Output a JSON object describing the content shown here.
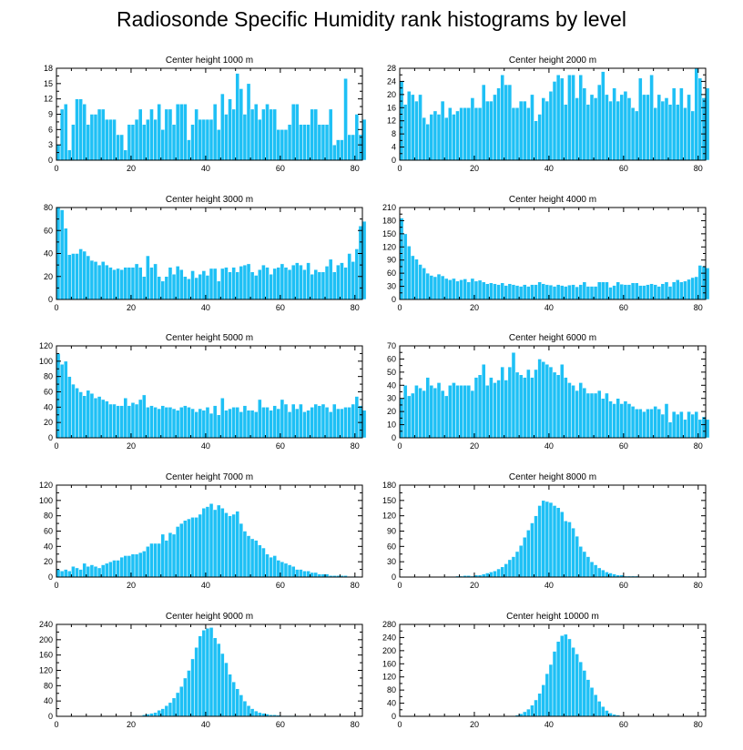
{
  "figure": {
    "title": "Radiosonde Specific Humidity rank histograms by level",
    "bar_color": "#1ec0f5",
    "bar_edge_color": "#ffffff",
    "axis_color": "#000000"
  },
  "chart_data": [
    {
      "type": "bar",
      "title": "Center height 1000 m",
      "xlim": [
        0,
        82
      ],
      "ylim": [
        0,
        18
      ],
      "xticks": [
        0,
        20,
        40,
        60,
        80
      ],
      "yticks": [
        0,
        3,
        6,
        9,
        12,
        15,
        18
      ],
      "xlabel": "",
      "ylabel": "",
      "values": [
        3,
        10,
        11,
        2,
        7,
        12,
        12,
        11,
        7,
        9,
        9,
        10,
        10,
        8,
        8,
        8,
        5,
        5,
        2,
        7,
        7,
        8,
        10,
        7,
        8,
        10,
        8,
        11,
        6,
        10,
        10,
        7,
        11,
        11,
        11,
        4,
        7,
        10,
        8,
        8,
        8,
        8,
        11,
        6,
        13,
        9,
        12,
        10,
        17,
        14,
        9,
        15,
        10,
        11,
        8,
        10,
        11,
        10,
        10,
        6,
        6,
        6,
        7,
        11,
        11,
        7,
        7,
        7,
        10,
        10,
        7,
        7,
        7,
        10,
        3,
        4,
        4,
        16,
        5,
        5,
        9,
        5,
        8
      ]
    },
    {
      "type": "bar",
      "title": "Center height 2000 m",
      "xlim": [
        0,
        82
      ],
      "ylim": [
        0,
        28
      ],
      "xticks": [
        0,
        20,
        40,
        60,
        80
      ],
      "yticks": [
        0,
        4,
        8,
        12,
        16,
        20,
        24,
        28
      ],
      "xlabel": "",
      "ylabel": "",
      "values": [
        24,
        17,
        21,
        20,
        18,
        20,
        13,
        11,
        14,
        15,
        14,
        18,
        13,
        16,
        14,
        15,
        16,
        16,
        16,
        19,
        16,
        16,
        23,
        18,
        18,
        20,
        22,
        26,
        23,
        23,
        16,
        16,
        18,
        18,
        16,
        20,
        12,
        14,
        19,
        18,
        21,
        24,
        26,
        25,
        17,
        26,
        26,
        19,
        26,
        22,
        17,
        20,
        19,
        23,
        27,
        20,
        18,
        22,
        18,
        20,
        21,
        19,
        16,
        15,
        25,
        20,
        20,
        26,
        16,
        20,
        18,
        19,
        17,
        22,
        17,
        22,
        16,
        20,
        15,
        28,
        25,
        19,
        22
      ]
    },
    {
      "type": "bar",
      "title": "Center height 3000 m",
      "xlim": [
        0,
        82
      ],
      "ylim": [
        0,
        80
      ],
      "xticks": [
        0,
        20,
        40,
        60,
        80
      ],
      "yticks": [
        0,
        20,
        40,
        60,
        80
      ],
      "xlabel": "",
      "ylabel": "",
      "values": [
        80,
        78,
        62,
        39,
        40,
        40,
        44,
        42,
        38,
        34,
        33,
        30,
        33,
        30,
        28,
        26,
        27,
        26,
        28,
        28,
        28,
        31,
        28,
        20,
        38,
        28,
        31,
        20,
        16,
        20,
        28,
        22,
        29,
        26,
        20,
        18,
        25,
        19,
        22,
        25,
        21,
        27,
        27,
        16,
        27,
        28,
        24,
        28,
        24,
        29,
        30,
        31,
        24,
        21,
        26,
        30,
        28,
        22,
        27,
        28,
        31,
        28,
        26,
        30,
        32,
        30,
        26,
        32,
        22,
        26,
        24,
        24,
        29,
        35,
        24,
        30,
        32,
        28,
        40,
        33,
        44,
        64,
        68
      ]
    },
    {
      "type": "bar",
      "title": "Center height 4000 m",
      "xlim": [
        0,
        82
      ],
      "ylim": [
        0,
        210
      ],
      "xticks": [
        0,
        20,
        40,
        60,
        80
      ],
      "yticks": [
        0,
        30,
        60,
        90,
        120,
        150,
        180,
        210
      ],
      "xlabel": "",
      "ylabel": "",
      "values": [
        186,
        150,
        122,
        100,
        92,
        80,
        72,
        60,
        55,
        52,
        58,
        54,
        48,
        45,
        48,
        42,
        45,
        47,
        40,
        48,
        42,
        44,
        40,
        36,
        38,
        36,
        34,
        38,
        32,
        36,
        34,
        32,
        30,
        34,
        30,
        34,
        34,
        40,
        36,
        34,
        33,
        30,
        34,
        32,
        30,
        33,
        34,
        29,
        34,
        40,
        30,
        30,
        30,
        40,
        40,
        40,
        28,
        32,
        40,
        35,
        34,
        34,
        38,
        38,
        32,
        32,
        34,
        36,
        34,
        30,
        36,
        40,
        30,
        40,
        45,
        40,
        42,
        46,
        50,
        52,
        78,
        76,
        72
      ]
    },
    {
      "type": "bar",
      "title": "Center height 5000 m",
      "xlim": [
        0,
        82
      ],
      "ylim": [
        0,
        120
      ],
      "xticks": [
        0,
        20,
        40,
        60,
        80
      ],
      "yticks": [
        0,
        20,
        40,
        60,
        80,
        100,
        120
      ],
      "xlabel": "",
      "ylabel": "",
      "values": [
        110,
        96,
        100,
        80,
        70,
        65,
        60,
        55,
        62,
        58,
        52,
        54,
        50,
        48,
        44,
        44,
        42,
        42,
        52,
        42,
        46,
        44,
        50,
        56,
        40,
        42,
        40,
        38,
        42,
        40,
        40,
        38,
        36,
        40,
        42,
        40,
        38,
        34,
        38,
        36,
        40,
        32,
        42,
        30,
        52,
        36,
        38,
        40,
        40,
        34,
        42,
        36,
        36,
        34,
        50,
        40,
        40,
        36,
        42,
        38,
        50,
        44,
        34,
        44,
        38,
        44,
        34,
        36,
        40,
        44,
        42,
        44,
        40,
        34,
        44,
        38,
        38,
        40,
        40,
        44,
        54,
        42,
        36
      ]
    },
    {
      "type": "bar",
      "title": "Center height 6000 m",
      "xlim": [
        0,
        82
      ],
      "ylim": [
        0,
        70
      ],
      "xticks": [
        0,
        20,
        40,
        60,
        80
      ],
      "yticks": [
        0,
        10,
        20,
        30,
        40,
        50,
        60,
        70
      ],
      "xlabel": "",
      "ylabel": "",
      "values": [
        30,
        40,
        32,
        34,
        40,
        38,
        36,
        46,
        40,
        38,
        42,
        36,
        32,
        40,
        42,
        40,
        40,
        40,
        40,
        36,
        46,
        48,
        56,
        40,
        46,
        42,
        44,
        54,
        44,
        54,
        65,
        50,
        48,
        46,
        52,
        46,
        52,
        60,
        58,
        56,
        54,
        50,
        48,
        56,
        46,
        42,
        40,
        36,
        42,
        38,
        34,
        34,
        34,
        36,
        30,
        34,
        28,
        26,
        30,
        26,
        28,
        26,
        24,
        22,
        22,
        20,
        22,
        22,
        24,
        22,
        18,
        26,
        12,
        20,
        18,
        20,
        14,
        20,
        18,
        20,
        14,
        16,
        14
      ]
    },
    {
      "type": "bar",
      "title": "Center height 7000 m",
      "xlim": [
        0,
        82
      ],
      "ylim": [
        0,
        120
      ],
      "xticks": [
        0,
        20,
        40,
        60,
        80
      ],
      "yticks": [
        0,
        20,
        40,
        60,
        80,
        100,
        120
      ],
      "xlabel": "",
      "ylabel": "",
      "values": [
        10,
        8,
        10,
        8,
        14,
        12,
        10,
        18,
        14,
        16,
        14,
        12,
        16,
        18,
        20,
        22,
        22,
        26,
        28,
        28,
        30,
        30,
        32,
        34,
        40,
        44,
        44,
        44,
        56,
        48,
        58,
        56,
        66,
        70,
        74,
        76,
        78,
        78,
        82,
        90,
        92,
        96,
        88,
        94,
        90,
        84,
        80,
        82,
        86,
        70,
        60,
        54,
        50,
        48,
        42,
        38,
        30,
        26,
        28,
        22,
        20,
        18,
        16,
        14,
        10,
        10,
        8,
        8,
        6,
        6,
        4,
        4,
        4,
        2,
        2,
        2,
        2,
        2,
        1,
        1,
        1,
        0,
        0
      ]
    },
    {
      "type": "bar",
      "title": "Center height 8000 m",
      "xlim": [
        0,
        82
      ],
      "ylim": [
        0,
        180
      ],
      "xticks": [
        0,
        20,
        40,
        60,
        80
      ],
      "yticks": [
        0,
        30,
        60,
        90,
        120,
        150,
        180
      ],
      "xlabel": "",
      "ylabel": "",
      "values": [
        0,
        0,
        0,
        0,
        0,
        0,
        0,
        0,
        0,
        0,
        0,
        0,
        1,
        1,
        1,
        2,
        2,
        3,
        3,
        2,
        4,
        4,
        6,
        8,
        10,
        12,
        16,
        20,
        26,
        34,
        40,
        50,
        62,
        78,
        92,
        106,
        120,
        140,
        150,
        148,
        146,
        140,
        136,
        128,
        110,
        108,
        96,
        80,
        60,
        50,
        40,
        30,
        24,
        18,
        14,
        10,
        8,
        6,
        4,
        4,
        2,
        2,
        2,
        2,
        1,
        1,
        1,
        1,
        0,
        0,
        0,
        0,
        0,
        0,
        0,
        0,
        0,
        0,
        0,
        0,
        0,
        0,
        0
      ]
    },
    {
      "type": "bar",
      "title": "Center height 9000 m",
      "xlim": [
        0,
        82
      ],
      "ylim": [
        0,
        240
      ],
      "xticks": [
        0,
        20,
        40,
        60,
        80
      ],
      "yticks": [
        0,
        40,
        80,
        120,
        160,
        200,
        240
      ],
      "xlabel": "",
      "ylabel": "",
      "values": [
        0,
        0,
        0,
        0,
        0,
        0,
        0,
        0,
        0,
        0,
        0,
        0,
        0,
        0,
        0,
        0,
        0,
        0,
        0,
        0,
        2,
        2,
        2,
        4,
        6,
        8,
        10,
        16,
        20,
        28,
        36,
        48,
        62,
        78,
        100,
        120,
        150,
        180,
        210,
        225,
        230,
        232,
        205,
        190,
        164,
        140,
        110,
        90,
        72,
        56,
        40,
        28,
        20,
        14,
        10,
        8,
        6,
        4,
        4,
        3,
        2,
        2,
        2,
        2,
        2,
        1,
        1,
        1,
        1,
        0,
        0,
        0,
        0,
        0,
        0,
        0,
        0,
        0,
        0,
        0,
        0,
        0,
        0
      ]
    },
    {
      "type": "bar",
      "title": "Center height 10000 m",
      "xlim": [
        0,
        82
      ],
      "ylim": [
        0,
        280
      ],
      "xticks": [
        0,
        20,
        40,
        60,
        80
      ],
      "yticks": [
        0,
        40,
        80,
        120,
        160,
        200,
        240,
        280
      ],
      "xlabel": "",
      "ylabel": "",
      "values": [
        0,
        0,
        0,
        0,
        0,
        0,
        0,
        0,
        0,
        0,
        0,
        0,
        0,
        0,
        0,
        0,
        0,
        0,
        0,
        0,
        0,
        0,
        0,
        0,
        0,
        0,
        0,
        0,
        0,
        1,
        2,
        4,
        8,
        14,
        22,
        34,
        50,
        70,
        96,
        130,
        158,
        198,
        228,
        246,
        250,
        236,
        210,
        190,
        166,
        140,
        112,
        88,
        66,
        46,
        30,
        18,
        10,
        6,
        4,
        2,
        2,
        1,
        1,
        1,
        0,
        0,
        0,
        0,
        0,
        0,
        0,
        0,
        0,
        0,
        0,
        0,
        0,
        0,
        0,
        0,
        0,
        0,
        0
      ]
    }
  ]
}
